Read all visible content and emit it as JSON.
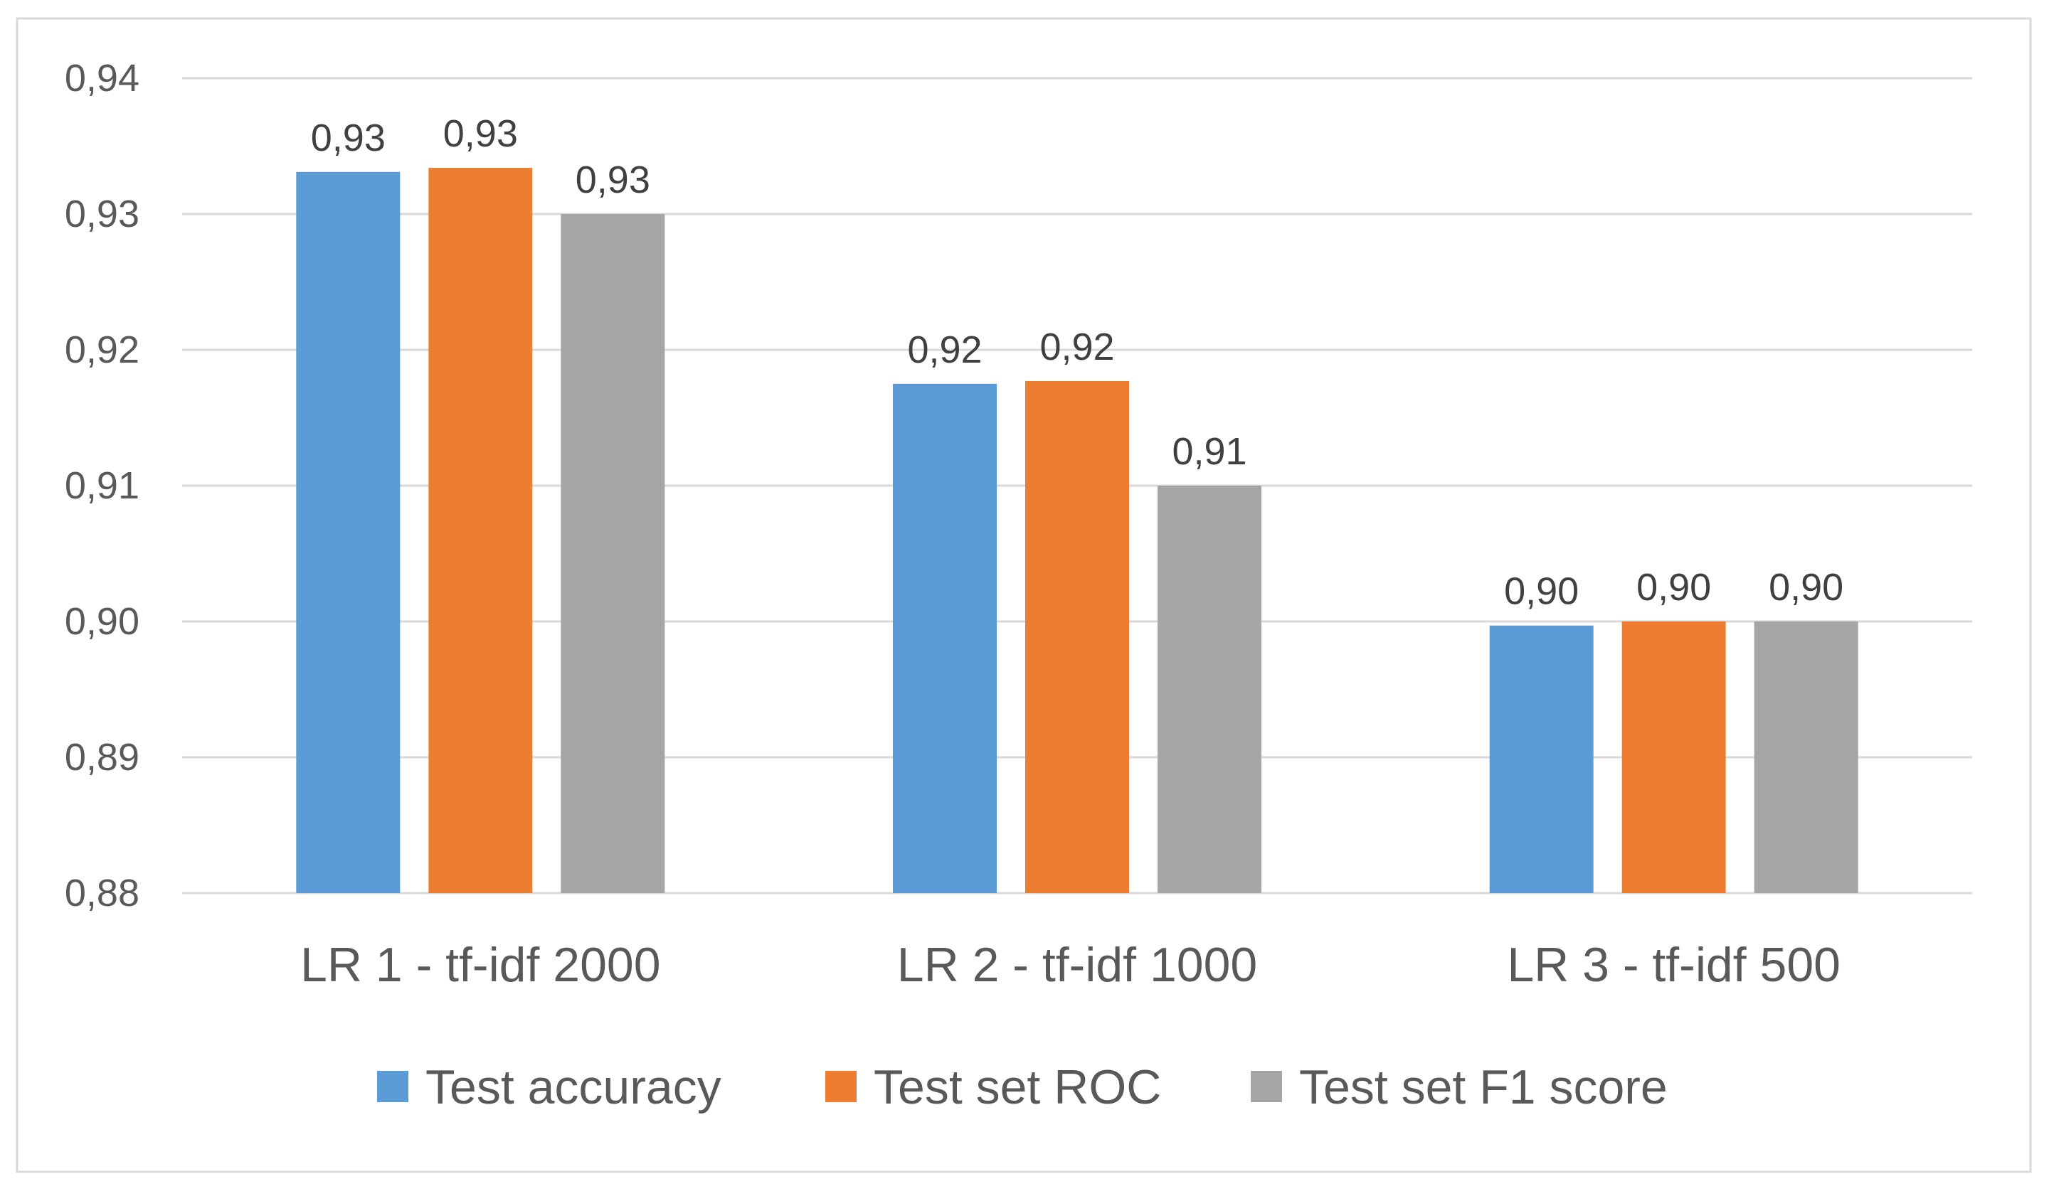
{
  "chart_data": {
    "type": "bar",
    "title": "",
    "xlabel": "",
    "ylabel": "",
    "categories": [
      "LR 1 - tf-idf 2000",
      "LR 2 - tf-idf 1000",
      "LR 3 - tf-idf 500"
    ],
    "series": [
      {
        "name": "Test accuracy",
        "color": "#5B9BD5",
        "values": [
          0.9331,
          0.9175,
          0.8997
        ],
        "labels": [
          "0,93",
          "0,92",
          "0,90"
        ]
      },
      {
        "name": "Test set ROC",
        "color": "#ED7D31",
        "values": [
          0.9334,
          0.9177,
          0.9
        ],
        "labels": [
          "0,93",
          "0,92",
          "0,90"
        ]
      },
      {
        "name": "Test set F1 score",
        "color": "#A5A5A5",
        "values": [
          0.93,
          0.91,
          0.9
        ],
        "labels": [
          "0,93",
          "0,91",
          "0,90"
        ]
      }
    ],
    "ylim": [
      0.88,
      0.94
    ],
    "yticks": [
      0.88,
      0.89,
      0.9,
      0.91,
      0.92,
      0.93,
      0.94
    ],
    "ytick_labels": [
      "0,88",
      "0,89",
      "0,90",
      "0,91",
      "0,92",
      "0,93",
      "0,94"
    ],
    "grid": true,
    "legend_position": "bottom"
  }
}
